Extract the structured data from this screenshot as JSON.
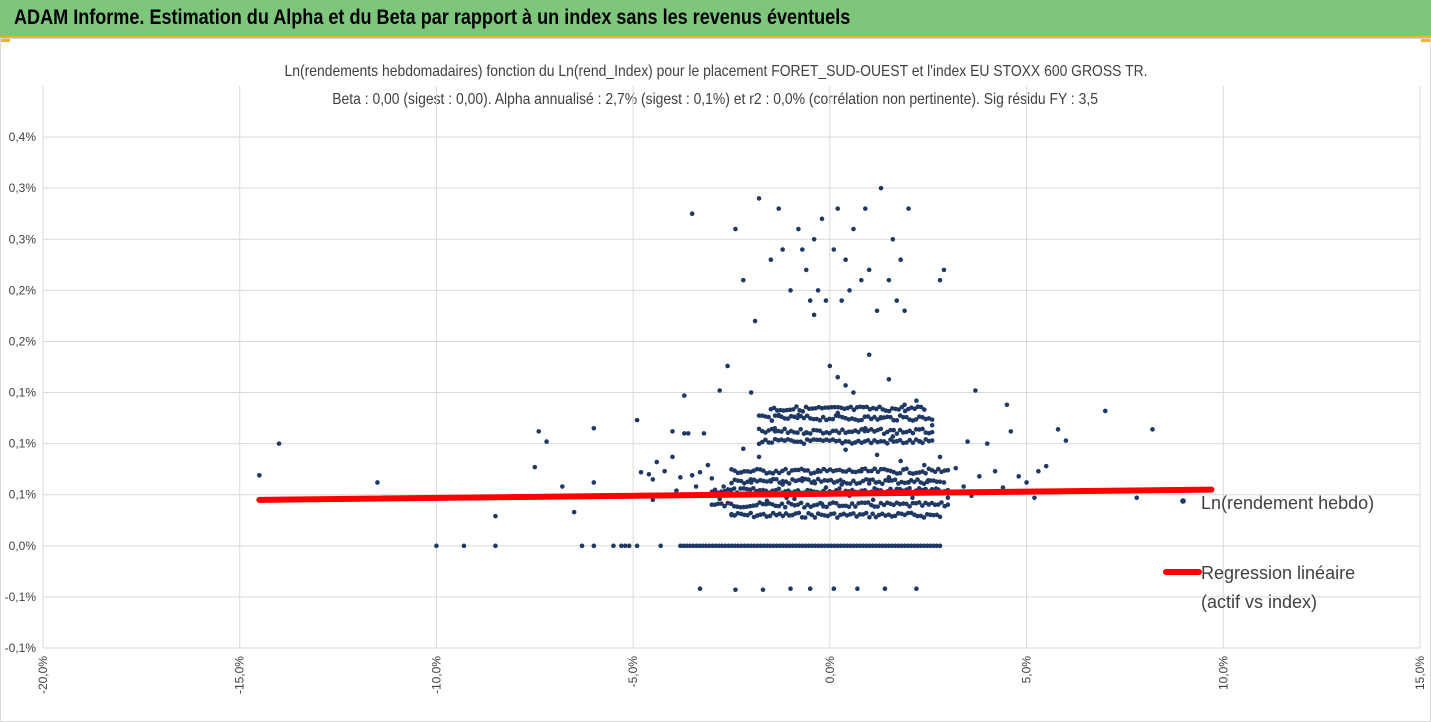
{
  "header": {
    "title": "ADAM Informe. Estimation du Alpha et du Beta par rapport à un index sans les revenus éventuels"
  },
  "colors": {
    "header_bg": "#7dc67c",
    "points": "#1f3864",
    "regression": "#ff0000",
    "grid": "#d9d9d9"
  },
  "chart_data": {
    "type": "scatter",
    "title_line1": "Ln(rendements hebdomadaires) fonction du Ln(rend_Index) pour le placement FORET_SUD-OUEST et l'index EU STOXX 600 GROSS TR.",
    "title_line2": "Beta : 0,00 (sigest : 0,00). Alpha annualisé : 2,7% (sigest : 0,1%) et r2 : 0,0% (corrélation non pertinente). Sig résidu FY : 3,5",
    "xlim": [
      -0.2,
      0.15
    ],
    "ylim": [
      -0.001,
      0.0045
    ],
    "x_ticks": [
      -0.2,
      -0.15,
      -0.1,
      -0.05,
      0.0,
      0.05,
      0.1,
      0.15
    ],
    "x_tick_labels": [
      "-20,0%",
      "-15,0%",
      "-10,0%",
      "-5,0%",
      "0,0%",
      "5,0%",
      "10,0%",
      "15,0%"
    ],
    "y_ticks": [
      -0.001,
      -0.0005,
      0.0,
      0.0005,
      0.001,
      0.0015,
      0.002,
      0.0025,
      0.003,
      0.0035,
      0.004
    ],
    "y_tick_labels": [
      "-0,1%",
      "-0,1%",
      "0,0%",
      "0,1%",
      "0,1%",
      "0,1%",
      "0,2%",
      "0,2%",
      "0,3%",
      "0,3%",
      "0,4%"
    ],
    "grid": true,
    "legend_position": "right",
    "series": [
      {
        "name": "Ln(rendement hebdo)",
        "kind": "scatter",
        "points": [
          [
            -0.145,
            0.00069
          ],
          [
            -0.14,
            0.001
          ],
          [
            -0.115,
            0.00062
          ],
          [
            -0.1,
            0
          ],
          [
            -0.093,
            0
          ],
          [
            -0.085,
            0
          ],
          [
            -0.085,
            0.00029
          ],
          [
            -0.075,
            0.00077
          ],
          [
            -0.074,
            0.00112
          ],
          [
            -0.072,
            0.00102
          ],
          [
            -0.068,
            0.00058
          ],
          [
            -0.065,
            0.00033
          ],
          [
            -0.063,
            0
          ],
          [
            -0.06,
            0
          ],
          [
            -0.062,
            0.00048
          ],
          [
            -0.06,
            0.00062
          ],
          [
            -0.06,
            0.00115
          ],
          [
            -0.055,
            0
          ],
          [
            -0.053,
            0
          ],
          [
            -0.052,
            0
          ],
          [
            -0.051,
            0
          ],
          [
            -0.049,
            0
          ],
          [
            -0.049,
            0.00123
          ],
          [
            -0.048,
            0.00072
          ],
          [
            -0.046,
            0.0007
          ],
          [
            -0.045,
            0.00049
          ],
          [
            -0.045,
            0.00065
          ],
          [
            -0.045,
            0.00045
          ],
          [
            -0.044,
            0.00082
          ],
          [
            -0.043,
            0
          ],
          [
            -0.042,
            0.00073
          ],
          [
            -0.04,
            0.00087
          ],
          [
            -0.04,
            0.00112
          ],
          [
            -0.039,
            0.00054
          ],
          [
            -0.038,
            0.00067
          ],
          [
            -0.037,
            0.0011
          ],
          [
            -0.037,
            0.00147
          ],
          [
            -0.036,
            0.0011
          ],
          [
            -0.035,
            0.00069
          ],
          [
            -0.034,
            0.00058
          ],
          [
            -0.033,
            0.00072
          ],
          [
            -0.032,
            0.0011
          ],
          [
            -0.031,
            0.00079
          ],
          [
            -0.03,
            0.00066
          ],
          [
            -0.035,
            0.00325
          ],
          [
            -0.033,
            -0.00042
          ],
          [
            -0.028,
            0.00046
          ],
          [
            -0.027,
            0.00058
          ],
          [
            -0.025,
            0.00031
          ],
          [
            -0.024,
            -0.00043
          ],
          [
            -0.022,
            0.00095
          ],
          [
            -0.02,
            0.00062
          ],
          [
            -0.02,
            0.0015
          ],
          [
            -0.018,
            0.00087
          ],
          [
            -0.017,
            -0.00043
          ],
          [
            -0.016,
            0.00044
          ],
          [
            -0.015,
            0.00063
          ],
          [
            -0.014,
            0.00115
          ],
          [
            -0.013,
            0.00128
          ],
          [
            -0.012,
            0.0006
          ],
          [
            -0.011,
            0.00047
          ],
          [
            -0.01,
            -0.00042
          ],
          [
            -0.009,
            0.00046
          ],
          [
            -0.008,
            0.00128
          ],
          [
            -0.007,
            0.00066
          ],
          [
            -0.006,
            0.00111
          ],
          [
            -0.005,
            -0.00042
          ],
          [
            -0.004,
            0.00063
          ],
          [
            -0.003,
            0.00074
          ],
          [
            -0.002,
            0.00041
          ],
          [
            -0.001,
            0.00057
          ],
          [
            0.001,
            -0.00042
          ],
          [
            0.002,
            0.0013
          ],
          [
            0.003,
            0.0006
          ],
          [
            0.004,
            0.00094
          ],
          [
            0.005,
            0.00049
          ],
          [
            0.006,
            0.0015
          ],
          [
            0.007,
            -0.00042
          ],
          [
            0.008,
            0.00073
          ],
          [
            0.009,
            0.00115
          ],
          [
            0.01,
            0.00061
          ],
          [
            0.011,
            0.00045
          ],
          [
            0.012,
            0.00089
          ],
          [
            0.013,
            0.00125
          ],
          [
            0.014,
            -0.00042
          ],
          [
            0.015,
            0.00067
          ],
          [
            0.016,
            0.00107
          ],
          [
            0.017,
            0.00052
          ],
          [
            0.018,
            0.00083
          ],
          [
            0.019,
            0.00138
          ],
          [
            0.02,
            0.00062
          ],
          [
            0.021,
            0.00047
          ],
          [
            0.022,
            -0.00042
          ],
          [
            0.023,
            0.00102
          ],
          [
            0.024,
            0.00079
          ],
          [
            0.025,
            0.00064
          ],
          [
            0.026,
            0.00118
          ],
          [
            0.027,
            0.00056
          ],
          [
            0.028,
            0.00087
          ],
          [
            0.029,
            0.00062
          ],
          [
            0.03,
            0.00047
          ],
          [
            0.032,
            0.00076
          ],
          [
            0.034,
            0.00058
          ],
          [
            0.035,
            0.00102
          ],
          [
            0.036,
            0.00049
          ],
          [
            0.038,
            0.00068
          ],
          [
            0.04,
            0.001
          ],
          [
            0.041,
            0.00052
          ],
          [
            0.042,
            0.00073
          ],
          [
            0.044,
            0.00057
          ],
          [
            0.046,
            0.00112
          ],
          [
            0.048,
            0.00068
          ],
          [
            0.05,
            0.00062
          ],
          [
            0.052,
            0.00047
          ],
          [
            0.053,
            0.00073
          ],
          [
            0.055,
            0.00078
          ],
          [
            0.058,
            0.00114
          ],
          [
            0.06,
            0.00103
          ],
          [
            0.07,
            0.00132
          ],
          [
            0.078,
            0.00047
          ],
          [
            0.082,
            0.00114
          ],
          [
            0.097,
            0.00055
          ],
          [
            -0.022,
            0.0026
          ],
          [
            -0.024,
            0.0031
          ],
          [
            -0.019,
            0.0022
          ],
          [
            -0.018,
            0.0034
          ],
          [
            -0.015,
            0.0028
          ],
          [
            -0.013,
            0.0033
          ],
          [
            -0.012,
            0.0029
          ],
          [
            -0.01,
            0.0025
          ],
          [
            -0.008,
            0.0031
          ],
          [
            -0.007,
            0.0029
          ],
          [
            -0.006,
            0.0027
          ],
          [
            -0.005,
            0.0024
          ],
          [
            -0.004,
            0.003
          ],
          [
            -0.003,
            0.0025
          ],
          [
            -0.002,
            0.0032
          ],
          [
            -0.001,
            0.0024
          ],
          [
            0.001,
            0.0029
          ],
          [
            0.002,
            0.0033
          ],
          [
            0.003,
            0.0024
          ],
          [
            0.004,
            0.0028
          ],
          [
            0.005,
            0.0025
          ],
          [
            0.006,
            0.0031
          ],
          [
            0.008,
            0.0026
          ],
          [
            0.009,
            0.0033
          ],
          [
            0.01,
            0.0027
          ],
          [
            0.012,
            0.0023
          ],
          [
            0.013,
            0.0035
          ],
          [
            0.015,
            0.0026
          ],
          [
            0.016,
            0.003
          ],
          [
            0.017,
            0.0024
          ],
          [
            0.018,
            0.0028
          ],
          [
            0.019,
            0.0023
          ],
          [
            0.028,
            0.0026
          ],
          [
            0.029,
            0.0027
          ],
          [
            0.02,
            0.0033
          ],
          [
            -0.004,
            0.00226
          ],
          [
            0.0,
            0.00176
          ],
          [
            0.002,
            0.00165
          ],
          [
            0.004,
            0.00157
          ],
          [
            0.01,
            0.00187
          ],
          [
            -0.026,
            0.00176
          ],
          [
            0.015,
            0.00163
          ],
          [
            0.022,
            0.00142
          ],
          [
            -0.028,
            0.00152
          ],
          [
            0.037,
            0.00152
          ],
          [
            0.045,
            0.00138
          ]
        ]
      },
      {
        "name": "Regression linéaire (actif vs index)",
        "kind": "line",
        "points": [
          [
            -0.145,
            0.00045
          ],
          [
            0.097,
            0.00055
          ]
        ]
      }
    ],
    "dense_rows": [
      {
        "y": 0.0,
        "x_range": [
          -0.038,
          0.028
        ]
      },
      {
        "y": 0.0003,
        "x_range": [
          -0.025,
          0.028
        ]
      },
      {
        "y": 0.0004,
        "x_range": [
          -0.03,
          0.03
        ]
      },
      {
        "y": 0.00054,
        "x_range": [
          -0.03,
          0.03
        ]
      },
      {
        "y": 0.00063,
        "x_range": [
          -0.025,
          0.028
        ]
      },
      {
        "y": 0.00073,
        "x_range": [
          -0.025,
          0.03
        ]
      },
      {
        "y": 0.00102,
        "x_range": [
          -0.018,
          0.026
        ]
      },
      {
        "y": 0.00112,
        "x_range": [
          -0.018,
          0.026
        ]
      },
      {
        "y": 0.00125,
        "x_range": [
          -0.018,
          0.026
        ]
      },
      {
        "y": 0.00134,
        "x_range": [
          -0.015,
          0.024
        ]
      }
    ],
    "legend": {
      "scatter_label": "Ln(rendement hebdo)",
      "line_label_1": "Regression linéaire",
      "line_label_2": "(actif vs index)"
    }
  }
}
